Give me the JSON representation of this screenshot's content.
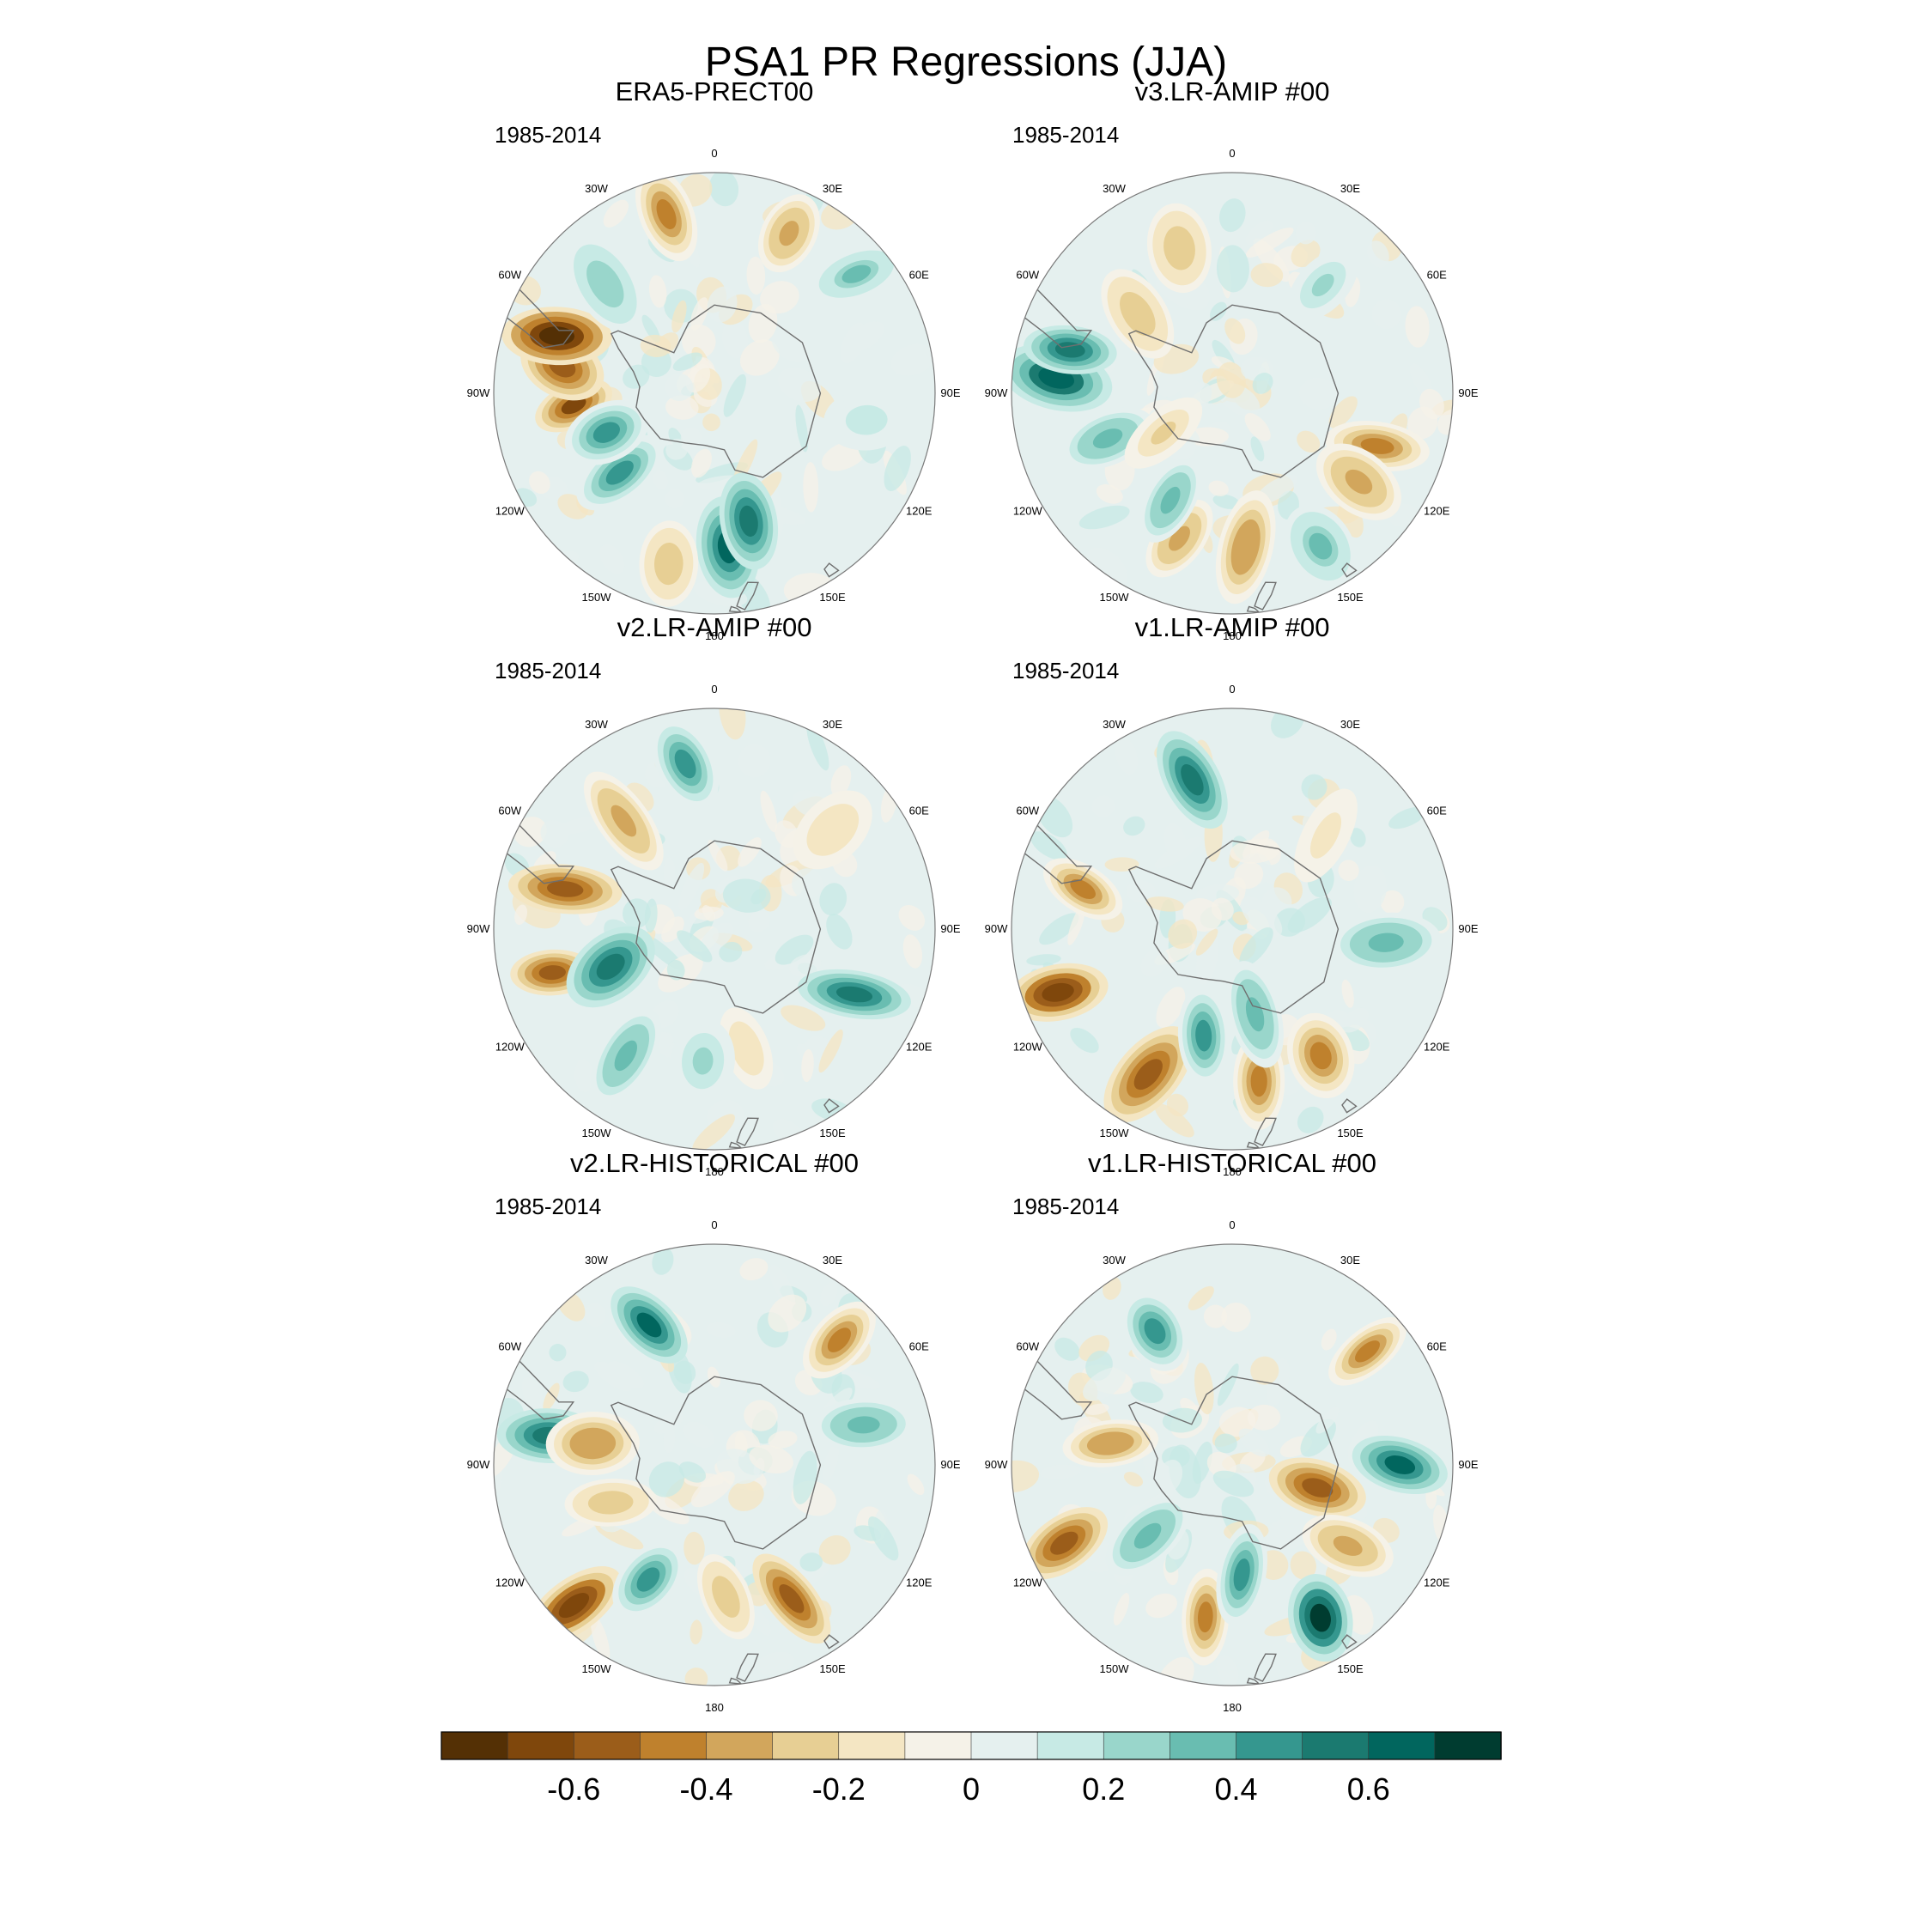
{
  "figure": {
    "title": "PSA1 PR Regressions (JJA)"
  },
  "colors": {
    "land_outline": "#6f6f6f",
    "frame": "#7a7a7a"
  },
  "chart_data": {
    "type": "heatmap",
    "projection": "south-polar-stereographic",
    "title": "PSA1 PR Regressions (JJA)",
    "lon_labels": {
      "0": "0",
      "30E": "30E",
      "60E": "60E",
      "90E": "90E",
      "120E": "120E",
      "150E": "150E",
      "180": "180",
      "150W": "150W",
      "120W": "120W",
      "90W": "90W",
      "60W": "60W",
      "30W": "30W"
    },
    "panels": [
      {
        "name": "ERA5-PRECT00",
        "period": "1985-2014",
        "anomalies": [
          {
            "lon": -95,
            "lat": -58,
            "value": -0.62
          },
          {
            "lon": -80,
            "lat": -55,
            "value": -0.55
          },
          {
            "lon": -70,
            "lat": -52,
            "value": -0.75
          },
          {
            "lon": -130,
            "lat": -62,
            "value": 0.45
          },
          {
            "lon": -110,
            "lat": -64,
            "value": 0.42
          },
          {
            "lon": 175,
            "lat": -55,
            "value": 0.62
          },
          {
            "lon": 165,
            "lat": -60,
            "value": 0.5
          },
          {
            "lon": -165,
            "lat": -50,
            "value": -0.3
          },
          {
            "lon": -15,
            "lat": -48,
            "value": -0.45
          },
          {
            "lon": 25,
            "lat": -50,
            "value": -0.35
          },
          {
            "lon": 50,
            "lat": -48,
            "value": 0.3
          },
          {
            "lon": -45,
            "lat": -55,
            "value": 0.25
          },
          {
            "lon": 100,
            "lat": -55,
            "value": 0.15
          }
        ]
      },
      {
        "name": "v3.LR-AMIP  #00",
        "period": "1985-2014",
        "anomalies": [
          {
            "lon": -85,
            "lat": -50,
            "value": 0.65
          },
          {
            "lon": -75,
            "lat": -52,
            "value": 0.55
          },
          {
            "lon": -110,
            "lat": -60,
            "value": 0.35
          },
          {
            "lon": 110,
            "lat": -55,
            "value": -0.5
          },
          {
            "lon": 125,
            "lat": -55,
            "value": -0.35
          },
          {
            "lon": 175,
            "lat": -55,
            "value": -0.4
          },
          {
            "lon": -160,
            "lat": -55,
            "value": -0.35
          },
          {
            "lon": -150,
            "lat": -62,
            "value": 0.35
          },
          {
            "lon": -20,
            "lat": -55,
            "value": -0.3
          },
          {
            "lon": 40,
            "lat": -58,
            "value": 0.2
          },
          {
            "lon": -50,
            "lat": -62,
            "value": -0.3
          },
          {
            "lon": 150,
            "lat": -50,
            "value": 0.3
          },
          {
            "lon": -120,
            "lat": -72,
            "value": -0.25
          }
        ]
      },
      {
        "name": "v2.LR-AMIP  #00",
        "period": "1985-2014",
        "anomalies": [
          {
            "lon": -105,
            "lat": -52,
            "value": -0.55
          },
          {
            "lon": -110,
            "lat": -65,
            "value": 0.55
          },
          {
            "lon": 115,
            "lat": -55,
            "value": 0.55
          },
          {
            "lon": -10,
            "lat": -52,
            "value": 0.45
          },
          {
            "lon": -40,
            "lat": -58,
            "value": -0.35
          },
          {
            "lon": -75,
            "lat": -55,
            "value": -0.55
          },
          {
            "lon": -145,
            "lat": -55,
            "value": 0.35
          },
          {
            "lon": 165,
            "lat": -62,
            "value": -0.2
          },
          {
            "lon": 50,
            "lat": -55,
            "value": -0.2
          },
          {
            "lon": -175,
            "lat": -60,
            "value": 0.2
          }
        ]
      },
      {
        "name": "v1.LR-AMIP  #00",
        "period": "1985-2014",
        "anomalies": [
          {
            "lon": -110,
            "lat": -48,
            "value": -0.7
          },
          {
            "lon": -150,
            "lat": -52,
            "value": -0.55
          },
          {
            "lon": 170,
            "lat": -55,
            "value": -0.5
          },
          {
            "lon": 145,
            "lat": -55,
            "value": -0.45
          },
          {
            "lon": -15,
            "lat": -55,
            "value": 0.55
          },
          {
            "lon": -165,
            "lat": -65,
            "value": 0.45
          },
          {
            "lon": 165,
            "lat": -70,
            "value": 0.35
          },
          {
            "lon": 95,
            "lat": -55,
            "value": 0.35
          },
          {
            "lon": -75,
            "lat": -55,
            "value": -0.5
          },
          {
            "lon": 45,
            "lat": -60,
            "value": -0.15
          }
        ]
      },
      {
        "name": "v2.LR-HISTORICAL  #00",
        "period": "1985-2014",
        "anomalies": [
          {
            "lon": -25,
            "lat": -55,
            "value": 0.6
          },
          {
            "lon": -135,
            "lat": -45,
            "value": -0.7
          },
          {
            "lon": -80,
            "lat": -52,
            "value": 0.55
          },
          {
            "lon": -80,
            "lat": -62,
            "value": -0.4
          },
          {
            "lon": -110,
            "lat": -65,
            "value": -0.3
          },
          {
            "lon": 150,
            "lat": -55,
            "value": -0.55
          },
          {
            "lon": 45,
            "lat": -50,
            "value": -0.45
          },
          {
            "lon": 75,
            "lat": -55,
            "value": 0.35
          },
          {
            "lon": -150,
            "lat": -60,
            "value": 0.4
          },
          {
            "lon": 175,
            "lat": -60,
            "value": -0.3
          }
        ]
      },
      {
        "name": "v1.LR-HISTORICAL  #00",
        "period": "1985-2014",
        "anomalies": [
          {
            "lon": 90,
            "lat": -52,
            "value": 0.6
          },
          {
            "lon": 150,
            "lat": -50,
            "value": 0.7
          },
          {
            "lon": 50,
            "lat": -50,
            "value": -0.5
          },
          {
            "lon": -115,
            "lat": -48,
            "value": -0.6
          },
          {
            "lon": -170,
            "lat": -55,
            "value": -0.45
          },
          {
            "lon": 175,
            "lat": -65,
            "value": 0.4
          },
          {
            "lon": 105,
            "lat": -70,
            "value": -0.55
          },
          {
            "lon": -80,
            "lat": -62,
            "value": -0.4
          },
          {
            "lon": -30,
            "lat": -55,
            "value": 0.4
          },
          {
            "lon": 125,
            "lat": -58,
            "value": -0.35
          },
          {
            "lon": -130,
            "lat": -65,
            "value": 0.35
          }
        ]
      }
    ],
    "colorbar": {
      "levels": [
        -0.7,
        -0.6,
        -0.5,
        -0.4,
        -0.3,
        -0.2,
        -0.1,
        0,
        0.1,
        0.2,
        0.3,
        0.4,
        0.5,
        0.6,
        0.7
      ],
      "colors": [
        "#543005",
        "#7f470c",
        "#9b5d1a",
        "#bf812d",
        "#d2a65c",
        "#e7cf94",
        "#f4e6c3",
        "#f5f2e8",
        "#e5f0ef",
        "#c7eae5",
        "#99d6cb",
        "#69bdb1",
        "#35978f",
        "#1b7a70",
        "#01665e",
        "#003c30"
      ],
      "tick_labels": [
        "-0.6",
        "-0.4",
        "-0.2",
        "0",
        "0.2",
        "0.4",
        "0.6"
      ],
      "tick_values": [
        -0.6,
        -0.4,
        -0.2,
        0,
        0.2,
        0.4,
        0.6
      ]
    }
  }
}
